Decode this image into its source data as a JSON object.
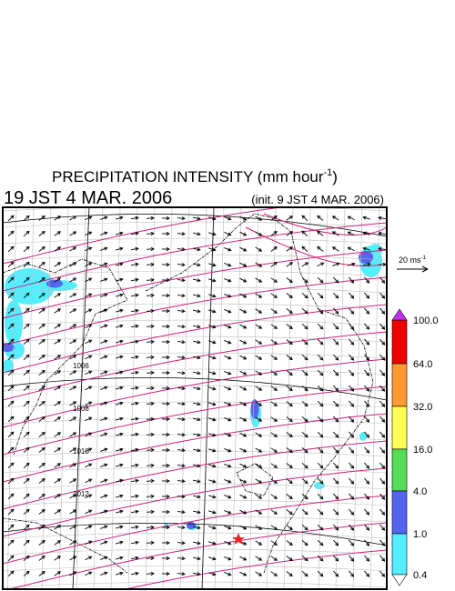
{
  "header": {
    "title": "PRECIPITATION INTENSITY (mm hour",
    "title_sup": "-1",
    "title_end": ")",
    "valid_time": "19 JST 4 MAR. 2006",
    "init_time": "(init. 9 JST 4 MAR. 2006)"
  },
  "reference_vector": {
    "label": "20 ms",
    "label_sup": "-1"
  },
  "colorbar": {
    "labels": [
      "100.0",
      "64.0",
      "32.0",
      "16.0",
      "4.0",
      "1.0",
      "0.4"
    ]
  },
  "isobars": {
    "labels": [
      "1006",
      "1008",
      "1010",
      "1012"
    ]
  }
}
